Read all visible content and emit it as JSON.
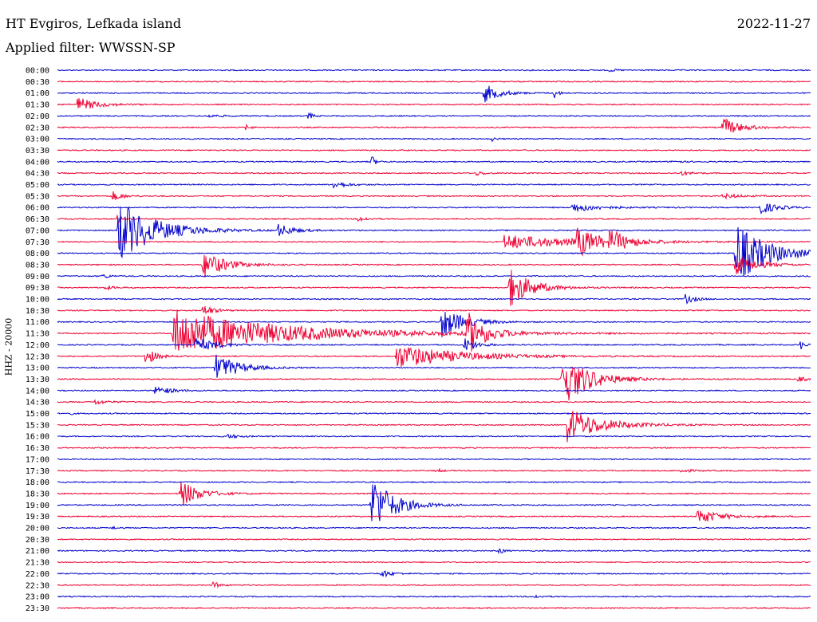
{
  "header": {
    "station": "HT Evgiros, Lefkada island",
    "date": "2022-11-27",
    "filter": "Applied filter: WWSSN-SP"
  },
  "channel_label": "HHZ - 20000",
  "colors": {
    "even_trace": "#0000cc",
    "odd_trace": "#ee0033",
    "background": "#ffffff"
  },
  "chart_data": {
    "type": "helicorder",
    "row_labels": [
      "00:00",
      "00:30",
      "01:00",
      "01:30",
      "02:00",
      "02:30",
      "03:00",
      "03:30",
      "04:00",
      "04:30",
      "05:00",
      "05:30",
      "06:00",
      "06:30",
      "07:00",
      "07:30",
      "08:00",
      "08:30",
      "09:00",
      "09:30",
      "10:00",
      "10:30",
      "11:00",
      "11:30",
      "12:00",
      "12:30",
      "13:00",
      "13:30",
      "14:00",
      "14:30",
      "15:00",
      "15:30",
      "16:00",
      "16:30",
      "17:00",
      "17:30",
      "18:00",
      "18:30",
      "19:00",
      "19:30",
      "20:00",
      "20:30",
      "21:00",
      "21:30",
      "22:00",
      "22:30",
      "23:00",
      "23:30"
    ],
    "minutes_per_row": 30,
    "events": [
      {
        "row": 0,
        "minute": 22.0,
        "amp": 2,
        "dur": 0.5
      },
      {
        "row": 2,
        "minute": 17.0,
        "amp": 12,
        "dur": 1.2
      },
      {
        "row": 2,
        "minute": 19.8,
        "amp": 7,
        "dur": 0.3
      },
      {
        "row": 3,
        "minute": 0.8,
        "amp": 9,
        "dur": 1.6
      },
      {
        "row": 4,
        "minute": 10.0,
        "amp": 6,
        "dur": 0.3
      },
      {
        "row": 4,
        "minute": 6.0,
        "amp": 2,
        "dur": 1.0
      },
      {
        "row": 5,
        "minute": 26.5,
        "amp": 12,
        "dur": 1.5
      },
      {
        "row": 5,
        "minute": 7.5,
        "amp": 3,
        "dur": 0.4
      },
      {
        "row": 6,
        "minute": 17.3,
        "amp": 3,
        "dur": 0.3
      },
      {
        "row": 8,
        "minute": 12.5,
        "amp": 9,
        "dur": 0.3
      },
      {
        "row": 8,
        "minute": 24.5,
        "amp": 2,
        "dur": 0.6
      },
      {
        "row": 9,
        "minute": 16.7,
        "amp": 3,
        "dur": 0.6
      },
      {
        "row": 9,
        "minute": 24.8,
        "amp": 3,
        "dur": 0.8
      },
      {
        "row": 10,
        "minute": 11.0,
        "amp": 5,
        "dur": 1.0
      },
      {
        "row": 11,
        "minute": 2.2,
        "amp": 6,
        "dur": 0.8
      },
      {
        "row": 11,
        "minute": 26.5,
        "amp": 3,
        "dur": 1.5
      },
      {
        "row": 12,
        "minute": 20.5,
        "amp": 6,
        "dur": 2.0
      },
      {
        "row": 12,
        "minute": 28.0,
        "amp": 8,
        "dur": 1.3
      },
      {
        "row": 13,
        "minute": 2.4,
        "amp": 8,
        "dur": 0.5
      },
      {
        "row": 13,
        "minute": 12.0,
        "amp": 4,
        "dur": 0.6
      },
      {
        "row": 14,
        "minute": 2.4,
        "amp": 40,
        "dur": 3.0
      },
      {
        "row": 14,
        "minute": 8.8,
        "amp": 8,
        "dur": 1.2
      },
      {
        "row": 15,
        "minute": 17.8,
        "amp": 9,
        "dur": 6.0
      },
      {
        "row": 15,
        "minute": 20.7,
        "amp": 18,
        "dur": 1.6
      },
      {
        "row": 15,
        "minute": 22.0,
        "amp": 12,
        "dur": 1.5
      },
      {
        "row": 16,
        "minute": 27.0,
        "amp": 40,
        "dur": 2.6
      },
      {
        "row": 17,
        "minute": 5.8,
        "amp": 18,
        "dur": 1.8
      },
      {
        "row": 17,
        "minute": 27.0,
        "amp": 12,
        "dur": 1.8
      },
      {
        "row": 18,
        "minute": 1.8,
        "amp": 3,
        "dur": 0.6
      },
      {
        "row": 19,
        "minute": 1.9,
        "amp": 3,
        "dur": 0.6
      },
      {
        "row": 19,
        "minute": 18.0,
        "amp": 25,
        "dur": 1.8
      },
      {
        "row": 20,
        "minute": 25.0,
        "amp": 6,
        "dur": 0.8
      },
      {
        "row": 21,
        "minute": 5.8,
        "amp": 8,
        "dur": 0.8
      },
      {
        "row": 22,
        "minute": 15.3,
        "amp": 20,
        "dur": 1.8
      },
      {
        "row": 23,
        "minute": 4.6,
        "amp": 30,
        "dur": 9.0
      },
      {
        "row": 23,
        "minute": 16.3,
        "amp": 28,
        "dur": 1.5
      },
      {
        "row": 24,
        "minute": 5.5,
        "amp": 10,
        "dur": 1.6
      },
      {
        "row": 24,
        "minute": 16.2,
        "amp": 9,
        "dur": 1.0
      },
      {
        "row": 24,
        "minute": 29.6,
        "amp": 6,
        "dur": 0.4
      },
      {
        "row": 25,
        "minute": 3.5,
        "amp": 12,
        "dur": 0.8
      },
      {
        "row": 25,
        "minute": 13.5,
        "amp": 15,
        "dur": 5.0
      },
      {
        "row": 26,
        "minute": 6.3,
        "amp": 18,
        "dur": 1.8
      },
      {
        "row": 27,
        "minute": 20.1,
        "amp": 35,
        "dur": 2.2
      },
      {
        "row": 27,
        "minute": 29.5,
        "amp": 3,
        "dur": 0.8
      },
      {
        "row": 28,
        "minute": 3.9,
        "amp": 6,
        "dur": 1.2
      },
      {
        "row": 29,
        "minute": 1.5,
        "amp": 3,
        "dur": 1.0
      },
      {
        "row": 30,
        "minute": 0.4,
        "amp": 3,
        "dur": 0.3
      },
      {
        "row": 31,
        "minute": 20.3,
        "amp": 22,
        "dur": 2.8
      },
      {
        "row": 32,
        "minute": 6.8,
        "amp": 3,
        "dur": 0.8
      },
      {
        "row": 35,
        "minute": 15.1,
        "amp": 3,
        "dur": 0.4
      },
      {
        "row": 35,
        "minute": 24.8,
        "amp": 3,
        "dur": 0.8
      },
      {
        "row": 37,
        "minute": 4.9,
        "amp": 18,
        "dur": 1.5
      },
      {
        "row": 38,
        "minute": 12.5,
        "amp": 38,
        "dur": 1.8
      },
      {
        "row": 39,
        "minute": 25.5,
        "amp": 10,
        "dur": 1.8
      },
      {
        "row": 40,
        "minute": 2.2,
        "amp": 2,
        "dur": 0.3
      },
      {
        "row": 42,
        "minute": 17.6,
        "amp": 5,
        "dur": 0.3
      },
      {
        "row": 44,
        "minute": 12.9,
        "amp": 5,
        "dur": 0.8
      },
      {
        "row": 45,
        "minute": 6.2,
        "amp": 4,
        "dur": 0.6
      },
      {
        "row": 46,
        "minute": 19.0,
        "amp": 2,
        "dur": 0.6
      }
    ]
  }
}
